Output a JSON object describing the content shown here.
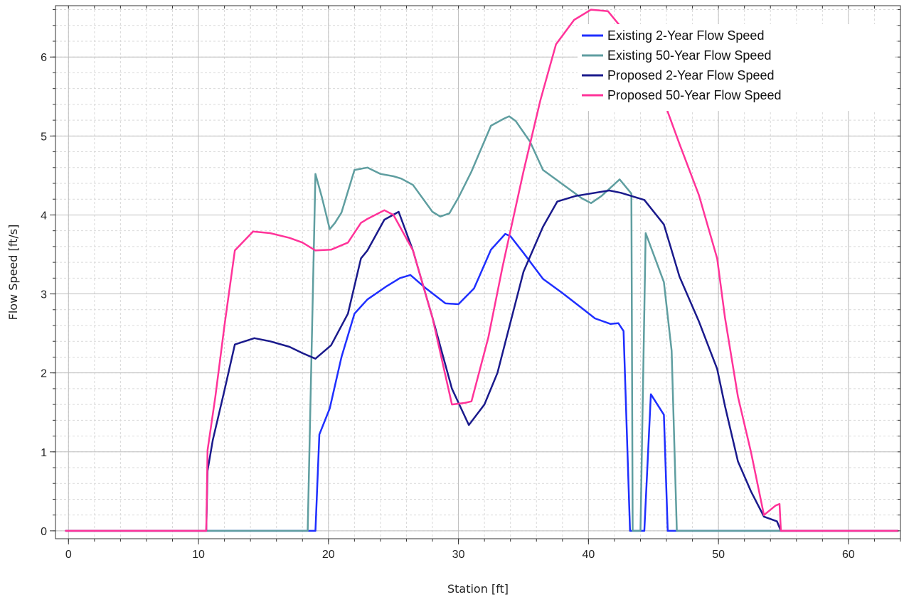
{
  "chart_data": {
    "type": "line",
    "xlabel": "Station [ft]",
    "ylabel": "Flow Speed [ft/s]",
    "xlim": [
      -1,
      64
    ],
    "ylim": [
      -0.1,
      6.65
    ],
    "x_ticks": [
      0,
      10,
      20,
      30,
      40,
      50,
      60
    ],
    "y_ticks": [
      0,
      1,
      2,
      3,
      4,
      5,
      6
    ],
    "x_minor_step": 2,
    "y_minor_step": 0.2,
    "grid": true,
    "legend_position": "top-right",
    "series": [
      {
        "name": "Existing 2-Year Flow Speed",
        "color": "#1f2fff",
        "points": [
          [
            -0.2,
            0
          ],
          [
            19.0,
            0
          ],
          [
            19.3,
            1.22
          ],
          [
            20.1,
            1.55
          ],
          [
            21.0,
            2.2
          ],
          [
            22.0,
            2.75
          ],
          [
            23.0,
            2.93
          ],
          [
            24.5,
            3.1
          ],
          [
            25.5,
            3.2
          ],
          [
            26.3,
            3.24
          ],
          [
            27.5,
            3.07
          ],
          [
            29.0,
            2.88
          ],
          [
            30.0,
            2.87
          ],
          [
            31.2,
            3.07
          ],
          [
            32.5,
            3.56
          ],
          [
            33.6,
            3.76
          ],
          [
            34.0,
            3.73
          ],
          [
            35.0,
            3.52
          ],
          [
            36.5,
            3.19
          ],
          [
            38.0,
            3.01
          ],
          [
            39.5,
            2.82
          ],
          [
            40.5,
            2.69
          ],
          [
            41.7,
            2.62
          ],
          [
            42.3,
            2.63
          ],
          [
            42.7,
            2.53
          ],
          [
            43.2,
            0
          ],
          [
            44.3,
            0
          ],
          [
            44.8,
            1.73
          ],
          [
            45.8,
            1.47
          ],
          [
            46.1,
            0
          ],
          [
            63.8,
            0
          ]
        ]
      },
      {
        "name": "Existing 50-Year Flow Speed",
        "color": "#5f9ea0",
        "points": [
          [
            -0.2,
            0
          ],
          [
            18.4,
            0
          ],
          [
            19.0,
            4.52
          ],
          [
            19.5,
            4.22
          ],
          [
            20.1,
            3.82
          ],
          [
            20.5,
            3.9
          ],
          [
            21.0,
            4.03
          ],
          [
            22.0,
            4.57
          ],
          [
            23.0,
            4.6
          ],
          [
            24.0,
            4.52
          ],
          [
            25.0,
            4.49
          ],
          [
            25.6,
            4.46
          ],
          [
            26.5,
            4.38
          ],
          [
            28.0,
            4.04
          ],
          [
            28.6,
            3.98
          ],
          [
            29.3,
            4.02
          ],
          [
            30.0,
            4.22
          ],
          [
            31.0,
            4.55
          ],
          [
            32.5,
            5.13
          ],
          [
            33.5,
            5.22
          ],
          [
            33.9,
            5.25
          ],
          [
            34.4,
            5.19
          ],
          [
            35.5,
            4.93
          ],
          [
            36.5,
            4.57
          ],
          [
            38.0,
            4.39
          ],
          [
            39.5,
            4.21
          ],
          [
            40.2,
            4.15
          ],
          [
            41.0,
            4.24
          ],
          [
            42.4,
            4.45
          ],
          [
            43.3,
            4.27
          ],
          [
            43.4,
            0
          ],
          [
            44.0,
            0
          ],
          [
            44.4,
            3.77
          ],
          [
            45.8,
            3.15
          ],
          [
            46.4,
            2.28
          ],
          [
            46.8,
            0
          ],
          [
            63.8,
            0
          ]
        ]
      },
      {
        "name": "Proposed 2-Year Flow Speed",
        "color": "#1a1a8c",
        "points": [
          [
            -0.2,
            0
          ],
          [
            10.6,
            0
          ],
          [
            10.7,
            0.76
          ],
          [
            11.1,
            1.15
          ],
          [
            12.0,
            1.78
          ],
          [
            12.8,
            2.36
          ],
          [
            14.3,
            2.44
          ],
          [
            15.5,
            2.4
          ],
          [
            17.0,
            2.33
          ],
          [
            18.0,
            2.25
          ],
          [
            19.0,
            2.18
          ],
          [
            20.2,
            2.35
          ],
          [
            21.5,
            2.75
          ],
          [
            22.5,
            3.45
          ],
          [
            23.0,
            3.55
          ],
          [
            24.3,
            3.94
          ],
          [
            25.4,
            4.04
          ],
          [
            26.5,
            3.55
          ],
          [
            28.0,
            2.7
          ],
          [
            29.5,
            1.8
          ],
          [
            30.8,
            1.34
          ],
          [
            32.0,
            1.6
          ],
          [
            33.0,
            2.0
          ],
          [
            35.0,
            3.28
          ],
          [
            36.5,
            3.85
          ],
          [
            37.6,
            4.17
          ],
          [
            39.0,
            4.24
          ],
          [
            41.6,
            4.31
          ],
          [
            42.5,
            4.28
          ],
          [
            44.3,
            4.19
          ],
          [
            45.8,
            3.88
          ],
          [
            47.0,
            3.22
          ],
          [
            48.5,
            2.65
          ],
          [
            49.9,
            2.05
          ],
          [
            50.5,
            1.58
          ],
          [
            51.5,
            0.88
          ],
          [
            52.5,
            0.5
          ],
          [
            53.5,
            0.18
          ],
          [
            54.5,
            0.12
          ],
          [
            54.8,
            0
          ],
          [
            63.8,
            0
          ]
        ]
      },
      {
        "name": "Proposed 50-Year Flow Speed",
        "color": "#ff3399",
        "points": [
          [
            -0.2,
            0
          ],
          [
            10.6,
            0
          ],
          [
            10.7,
            1.02
          ],
          [
            11.3,
            1.7
          ],
          [
            12.0,
            2.6
          ],
          [
            12.8,
            3.55
          ],
          [
            14.2,
            3.79
          ],
          [
            15.5,
            3.77
          ],
          [
            17.0,
            3.71
          ],
          [
            18.0,
            3.65
          ],
          [
            19.0,
            3.55
          ],
          [
            20.2,
            3.56
          ],
          [
            21.5,
            3.65
          ],
          [
            22.5,
            3.9
          ],
          [
            23.0,
            3.95
          ],
          [
            24.3,
            4.06
          ],
          [
            25.0,
            4.0
          ],
          [
            26.5,
            3.55
          ],
          [
            28.0,
            2.7
          ],
          [
            29.5,
            1.6
          ],
          [
            30.5,
            1.62
          ],
          [
            31.0,
            1.64
          ],
          [
            32.3,
            2.45
          ],
          [
            33.4,
            3.35
          ],
          [
            35.0,
            4.55
          ],
          [
            36.3,
            5.45
          ],
          [
            37.5,
            6.16
          ],
          [
            38.9,
            6.47
          ],
          [
            40.2,
            6.6
          ],
          [
            41.5,
            6.58
          ],
          [
            42.9,
            6.3
          ],
          [
            45.0,
            5.8
          ],
          [
            47.0,
            4.9
          ],
          [
            48.5,
            4.25
          ],
          [
            49.9,
            3.45
          ],
          [
            50.5,
            2.7
          ],
          [
            51.5,
            1.7
          ],
          [
            52.5,
            1.0
          ],
          [
            53.5,
            0.2
          ],
          [
            54.4,
            0.32
          ],
          [
            54.7,
            0.34
          ],
          [
            54.8,
            0
          ],
          [
            63.8,
            0
          ]
        ]
      }
    ]
  }
}
